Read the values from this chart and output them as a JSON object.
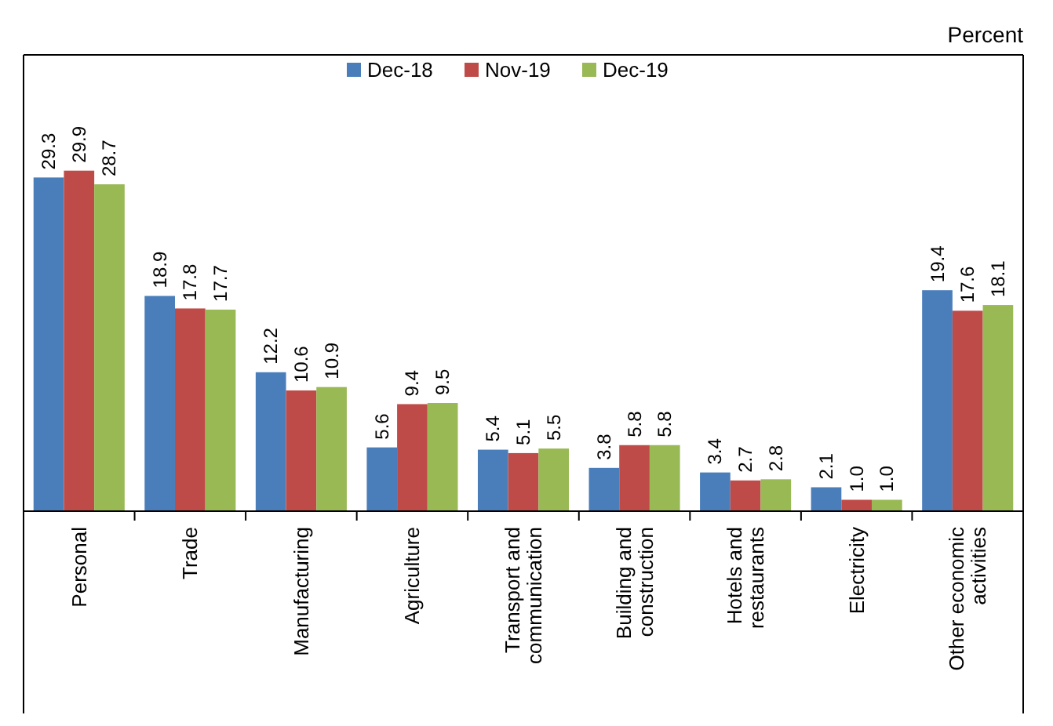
{
  "chart_data": {
    "type": "bar",
    "annotations": [
      "Percent"
    ],
    "categories": [
      "Personal",
      "Trade",
      "Manufacturing",
      "Agriculture",
      "Transport and communication",
      "Building and construction",
      "Hotels and restaurants",
      "Electricity",
      "Other economic activities"
    ],
    "series": [
      {
        "name": "Dec-18",
        "color": "#4a7ebb",
        "values": [
          29.3,
          18.9,
          12.2,
          5.6,
          5.4,
          3.8,
          3.4,
          2.1,
          19.4
        ],
        "value_labels": [
          "29.3",
          "18.9",
          "12.2",
          "5.6",
          "5.4",
          "3.8",
          "3.4",
          "2.1",
          "19.4"
        ]
      },
      {
        "name": "Nov-19",
        "color": "#be4b48",
        "values": [
          29.9,
          17.8,
          10.6,
          9.4,
          5.1,
          5.8,
          2.7,
          1.0,
          17.6
        ],
        "value_labels": [
          "29.9",
          "17.8",
          "10.6",
          "9.4",
          "5.1",
          "5.8",
          "2.7",
          "1.0",
          "17.6"
        ]
      },
      {
        "name": "Dec-19",
        "color": "#98b954",
        "values": [
          28.7,
          17.7,
          10.9,
          9.5,
          5.5,
          5.8,
          2.8,
          1.0,
          18.1
        ],
        "value_labels": [
          "28.7",
          "17.7",
          "10.9",
          "9.5",
          "5.5",
          "5.8",
          "2.8",
          "1.0",
          "18.1"
        ]
      }
    ],
    "legend": "top"
  }
}
